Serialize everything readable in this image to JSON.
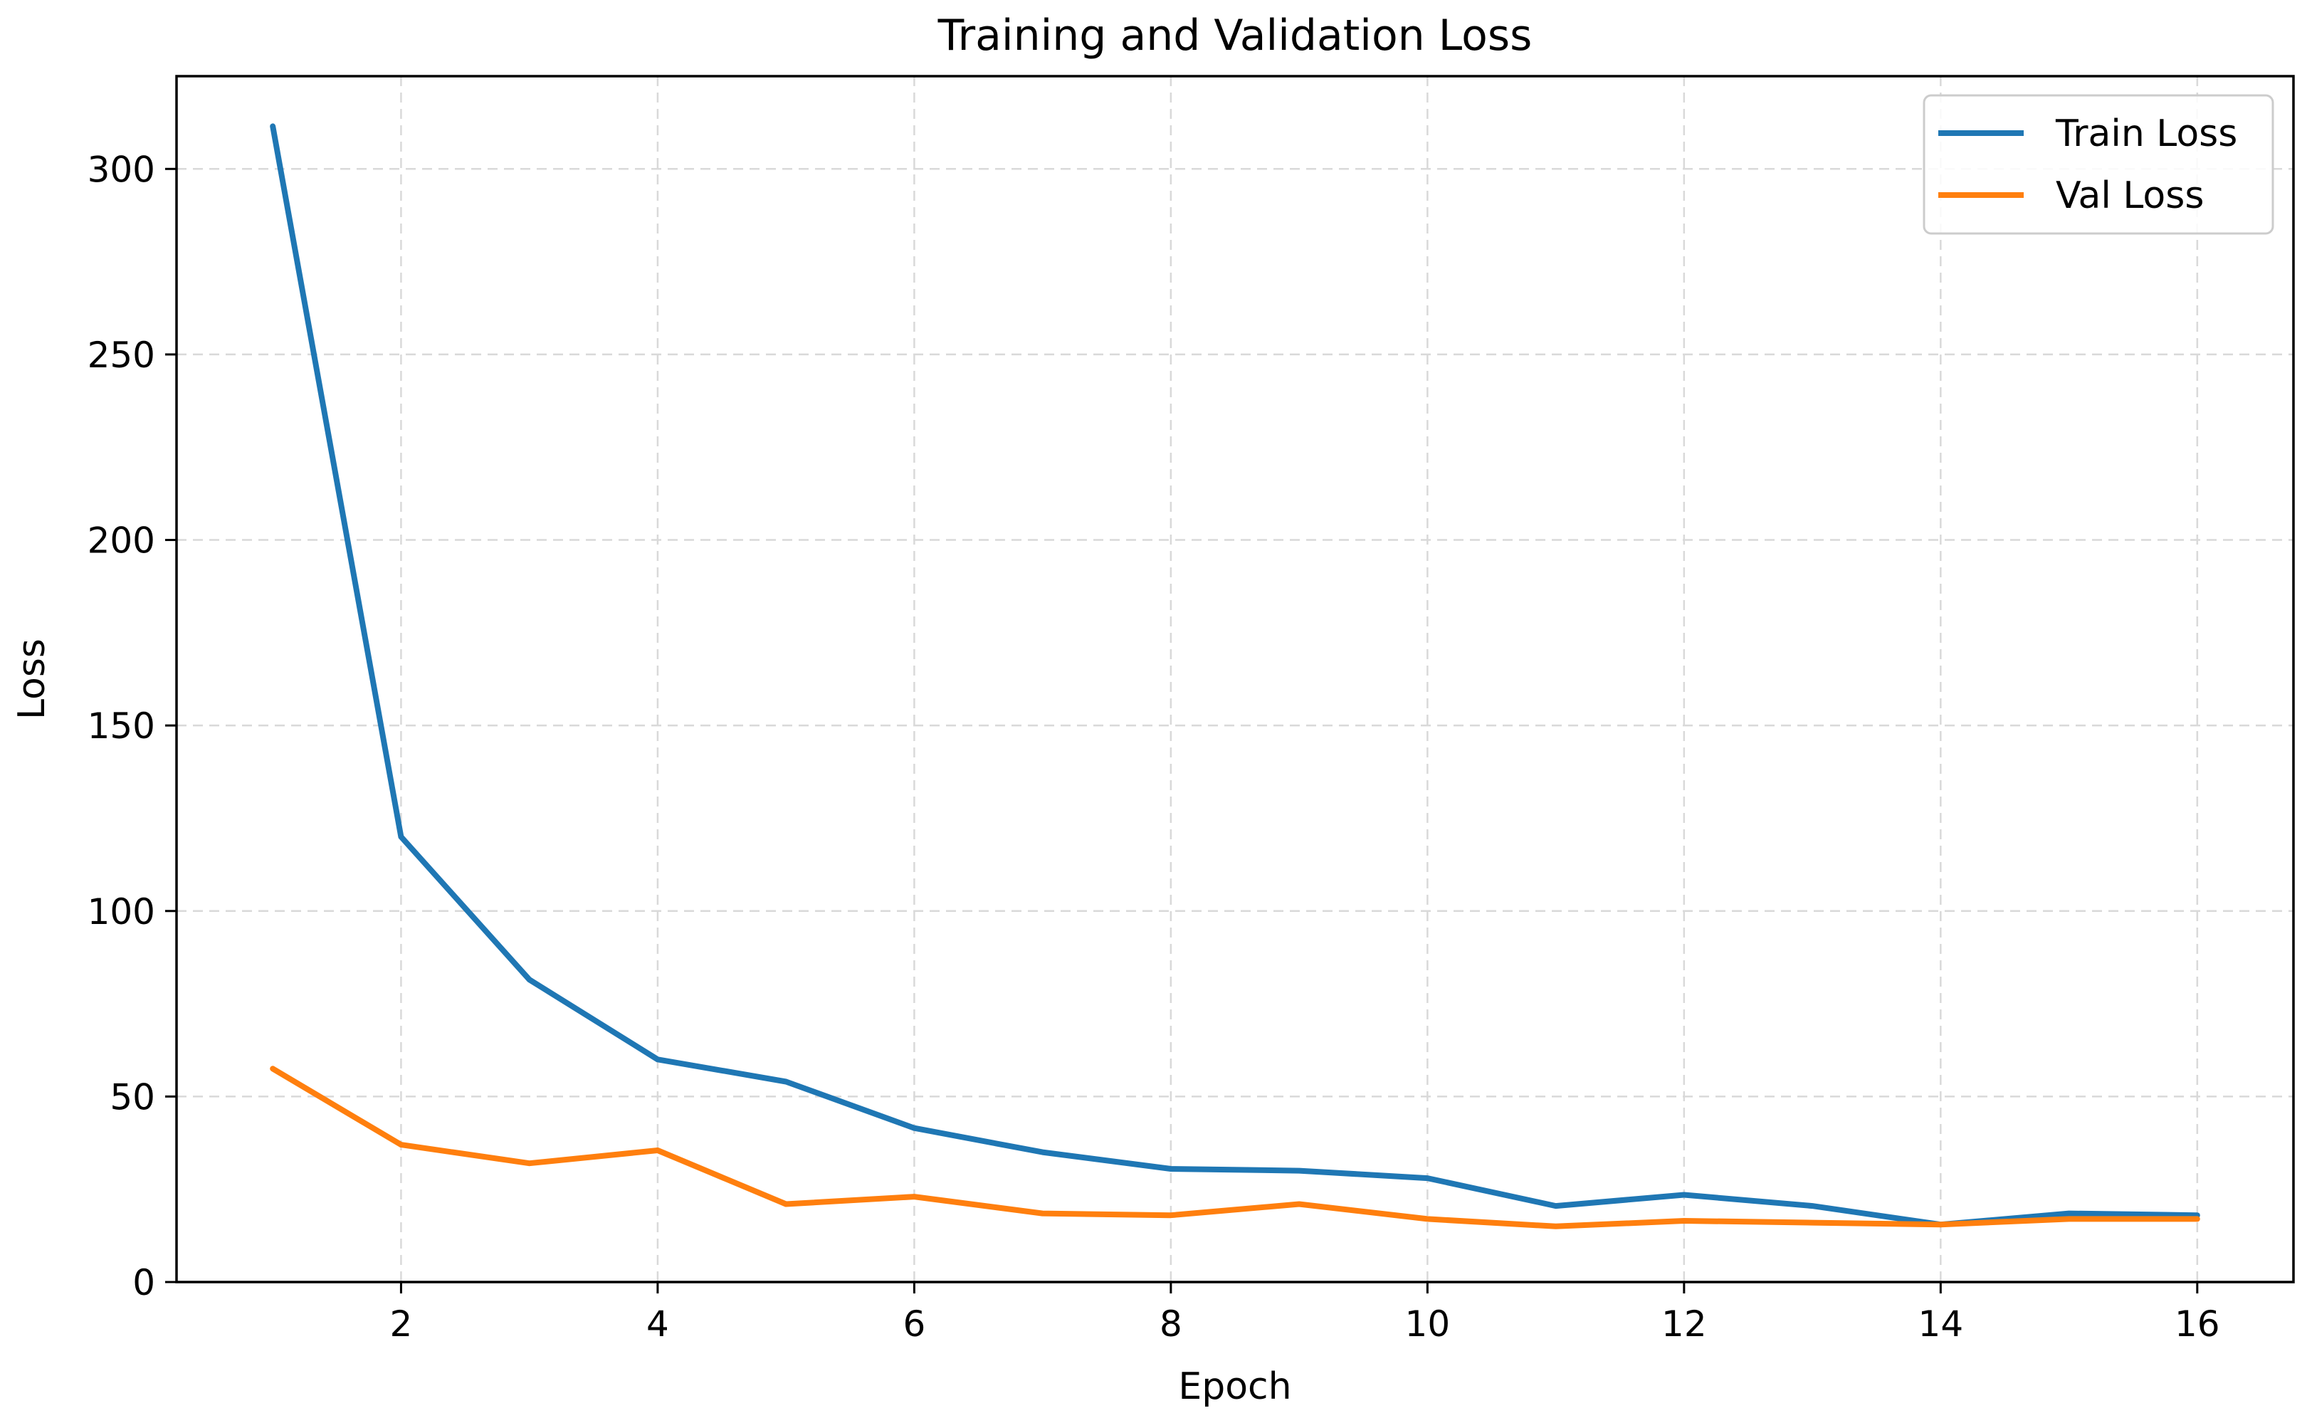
{
  "chart_data": {
    "type": "line",
    "title": "Training and Validation Loss",
    "xlabel": "Epoch",
    "ylabel": "Loss",
    "xlim": [
      0.25,
      16.75
    ],
    "ylim": [
      0,
      325
    ],
    "xticks": [
      2,
      4,
      6,
      8,
      10,
      12,
      14,
      16
    ],
    "yticks": [
      0,
      50,
      100,
      150,
      200,
      250,
      300
    ],
    "grid": true,
    "legend_position": "top-right",
    "x": [
      1,
      2,
      3,
      4,
      5,
      6,
      7,
      8,
      9,
      10,
      11,
      12,
      13,
      14,
      15,
      16
    ],
    "series": [
      {
        "name": "Train Loss",
        "color": "#1f77b4",
        "values": [
          311.5,
          120.0,
          81.5,
          60.0,
          54.0,
          41.5,
          35.0,
          30.5,
          30.0,
          28.0,
          20.5,
          23.5,
          20.5,
          15.5,
          18.5,
          18.0
        ]
      },
      {
        "name": "Val Loss",
        "color": "#ff7f0e",
        "values": [
          57.5,
          37.0,
          32.0,
          35.5,
          21.0,
          23.0,
          18.5,
          18.0,
          21.0,
          17.0,
          15.0,
          16.5,
          16.0,
          15.5,
          17.0,
          17.0
        ]
      }
    ]
  }
}
